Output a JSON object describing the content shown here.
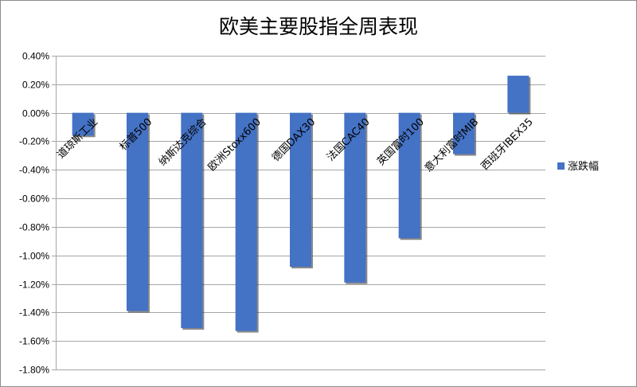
{
  "chart_data": {
    "type": "bar",
    "title": "欧美主要股指全周表现",
    "xlabel": "",
    "ylabel": "",
    "categories": [
      "道琼斯工业",
      "标普500",
      "纳斯达克综合",
      "欧洲Stoxx600",
      "德国DAX30",
      "法国CAC40",
      "英国富时100",
      "意大利富时MIB",
      "西班牙IBEX35"
    ],
    "series": [
      {
        "name": "涨跌幅",
        "values": [
          -0.16,
          -1.39,
          -1.51,
          -1.53,
          -1.08,
          -1.19,
          -0.88,
          -0.29,
          0.26
        ]
      }
    ],
    "ylim": [
      -1.8,
      0.4
    ],
    "yticks": [
      0.4,
      0.2,
      0.0,
      -0.2,
      -0.4,
      -0.6,
      -0.8,
      -1.0,
      -1.2,
      -1.4,
      -1.6,
      -1.8
    ],
    "ytick_labels": [
      "0.40%",
      "0.20%",
      "0.00%",
      "-0.20%",
      "-0.40%",
      "-0.60%",
      "-0.80%",
      "-1.00%",
      "-1.20%",
      "-1.40%",
      "-1.60%",
      "-1.80%"
    ],
    "grid": true,
    "legend_position": "right",
    "colors": {
      "bar": "#4472c4",
      "grid": "#a6a6a6",
      "shadow": "#2b2b2b"
    }
  }
}
